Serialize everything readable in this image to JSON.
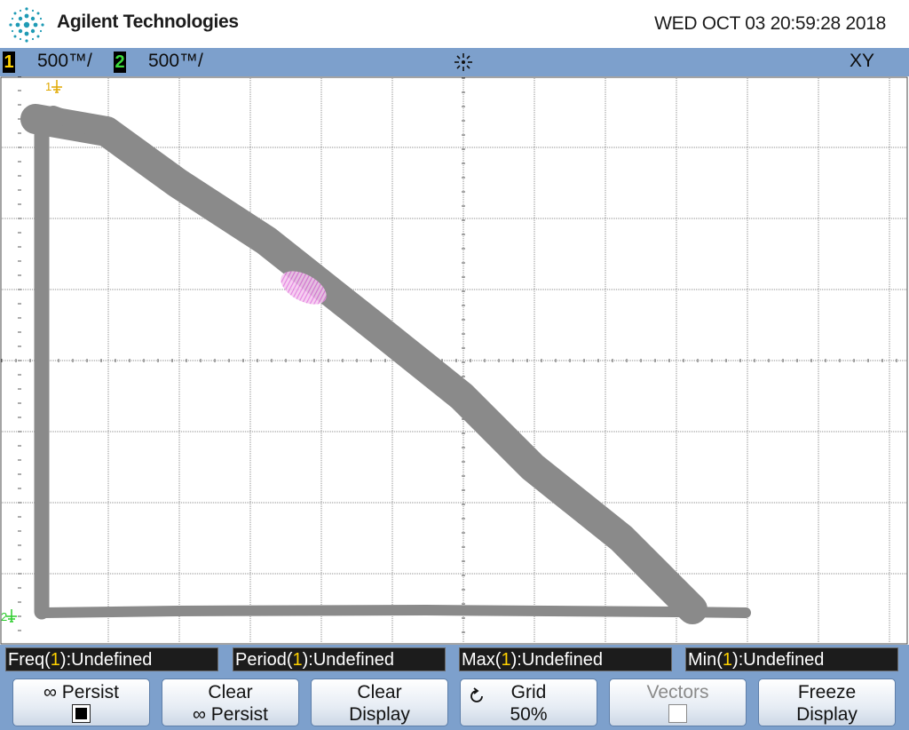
{
  "header": {
    "brand": "Agilent Technologies",
    "datetime": "WED OCT 03 20:59:28 2018",
    "logo_icon": "agilent-spark-logo-icon"
  },
  "status": {
    "ch1": {
      "number": "1",
      "scale": "500™/",
      "color": "#ffd200"
    },
    "ch2": {
      "number": "2",
      "scale": "500™/",
      "color": "#3cdc3c"
    },
    "trigger_icon": "acquisition-run-icon",
    "mode": "XY"
  },
  "screen": {
    "ch1_marker": "1",
    "ch2_marker": "2",
    "grid_intensity": "50%",
    "trace_color": "#8a8a8a",
    "highlight_color": "#f0a0e8"
  },
  "measurements": [
    {
      "name": "Freq",
      "channel": "1",
      "value": "Undefined"
    },
    {
      "name": "Period",
      "channel": "1",
      "value": "Undefined"
    },
    {
      "name": "Max",
      "channel": "1",
      "value": "Undefined"
    },
    {
      "name": "Min",
      "channel": "1",
      "value": "Undefined"
    }
  ],
  "softkeys": {
    "persist": {
      "label": "∞ Persist",
      "checked": true
    },
    "clear_persist": {
      "line1": "Clear",
      "line2": "∞ Persist"
    },
    "clear_display": {
      "line1": "Clear",
      "line2": "Display"
    },
    "grid": {
      "line1": "Grid",
      "line2": "50%"
    },
    "vectors": {
      "label": "Vectors",
      "checked": false,
      "enabled": false
    },
    "freeze_display": {
      "line1": "Freeze",
      "line2": "Display"
    }
  }
}
